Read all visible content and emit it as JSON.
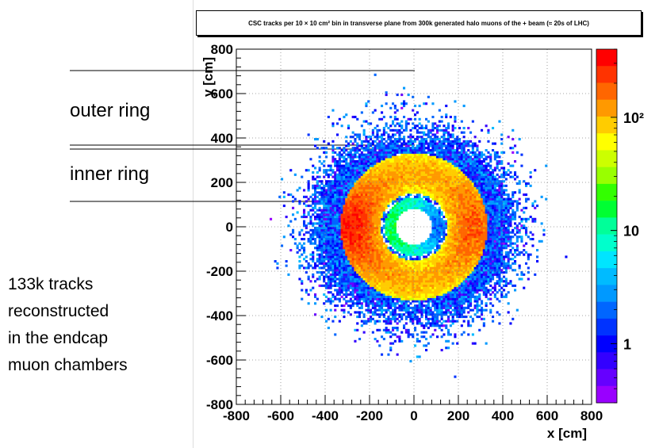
{
  "chart_data": {
    "type": "heatmap",
    "title": "CSC tracks per 10 × 10 cm² bin in transverse plane from 300k generated halo muons of the + beam (≈ 20s of LHC)",
    "xlabel": "x [cm]",
    "ylabel": "y [cm]",
    "xlim": [
      -800,
      800
    ],
    "ylim": [
      -800,
      800
    ],
    "x_ticks": [
      "-800",
      "-600",
      "-400",
      "-200",
      "0",
      "200",
      "400",
      "600",
      "800"
    ],
    "y_ticks": [
      "800",
      "600",
      "400",
      "200",
      "0",
      "-200",
      "-400",
      "-600",
      "-800"
    ],
    "grid": true,
    "colorbar": {
      "scale": "log",
      "range": [
        0.3,
        400
      ],
      "tick_labels": [
        "10²",
        "10",
        "1"
      ],
      "tick_values": [
        100,
        10,
        1
      ],
      "colors": [
        "#ff0000",
        "#ff3300",
        "#ff6600",
        "#ff9900",
        "#ffcc00",
        "#ffff00",
        "#ccff00",
        "#99ff00",
        "#33ff00",
        "#00ff33",
        "#00ff99",
        "#00ffcc",
        "#00e5ff",
        "#00bbff",
        "#0099ff",
        "#0066ff",
        "#0033ff",
        "#0000ff",
        "#3300ff",
        "#6600ff",
        "#9900ff"
      ]
    },
    "distribution": {
      "description_regions": [
        {
          "name": "hole",
          "r_max": 80
        },
        {
          "name": "inner ring",
          "r_min": 80,
          "r_max": 130,
          "density": 10
        },
        {
          "name": "outer ring",
          "r_min": 150,
          "r_max": 430,
          "peak_density": 200
        }
      ],
      "center": [
        0,
        0
      ],
      "peak_x": -230
    }
  },
  "annotations": {
    "outer_ring": "outer ring",
    "inner_ring": "inner ring",
    "tracks_lines": [
      "133k tracks",
      "reconstructed",
      "in the endcap",
      "muon chambers"
    ]
  }
}
